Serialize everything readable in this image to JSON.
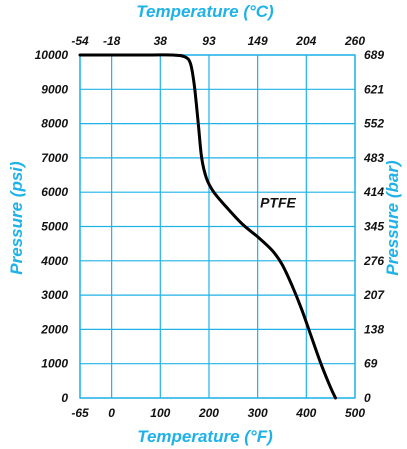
{
  "chart_data": {
    "type": "line",
    "colors": {
      "axis_titles": "#1fb2e8",
      "grid": "#1fb2e8",
      "line": "#000000",
      "text": "#111111"
    },
    "x_bottom": {
      "label": "Temperature (°F)",
      "range": [
        -65,
        500
      ],
      "ticks": [
        {
          "value": -65,
          "label": "-65"
        },
        {
          "value": 0,
          "label": "0"
        },
        {
          "value": 100,
          "label": "100"
        },
        {
          "value": 200,
          "label": "200"
        },
        {
          "value": 300,
          "label": "300"
        },
        {
          "value": 400,
          "label": "400"
        },
        {
          "value": 500,
          "label": "500"
        }
      ]
    },
    "x_top": {
      "label": "Temperature (°C)",
      "ticks": [
        {
          "value_f": -65,
          "label": "-54"
        },
        {
          "value_f": 0,
          "label": "-18"
        },
        {
          "value_f": 100,
          "label": "38"
        },
        {
          "value_f": 200,
          "label": "93"
        },
        {
          "value_f": 300,
          "label": "149"
        },
        {
          "value_f": 400,
          "label": "204"
        },
        {
          "value_f": 500,
          "label": "260"
        }
      ]
    },
    "y_left": {
      "label": "Pressure (psi)",
      "range": [
        0,
        10000
      ],
      "ticks": [
        {
          "value": 0,
          "label": "0"
        },
        {
          "value": 1000,
          "label": "1000"
        },
        {
          "value": 2000,
          "label": "2000"
        },
        {
          "value": 3000,
          "label": "3000"
        },
        {
          "value": 4000,
          "label": "4000"
        },
        {
          "value": 5000,
          "label": "5000"
        },
        {
          "value": 6000,
          "label": "6000"
        },
        {
          "value": 7000,
          "label": "7000"
        },
        {
          "value": 8000,
          "label": "8000"
        },
        {
          "value": 9000,
          "label": "9000"
        },
        {
          "value": 10000,
          "label": "10000"
        }
      ]
    },
    "y_right": {
      "label": "Pressure (bar)",
      "ticks": [
        {
          "value_psi": 0,
          "label": "0"
        },
        {
          "value_psi": 1000,
          "label": "69"
        },
        {
          "value_psi": 2000,
          "label": "138"
        },
        {
          "value_psi": 3000,
          "label": "207"
        },
        {
          "value_psi": 4000,
          "label": "276"
        },
        {
          "value_psi": 5000,
          "label": "345"
        },
        {
          "value_psi": 6000,
          "label": "414"
        },
        {
          "value_psi": 7000,
          "label": "483"
        },
        {
          "value_psi": 8000,
          "label": "552"
        },
        {
          "value_psi": 9000,
          "label": "621"
        },
        {
          "value_psi": 10000,
          "label": "689"
        }
      ]
    },
    "grid": true,
    "series": [
      {
        "name": "PTFE",
        "points": [
          [
            -65,
            10000
          ],
          [
            70,
            10000
          ],
          [
            125,
            10000
          ],
          [
            150,
            9950
          ],
          [
            162,
            9750
          ],
          [
            170,
            9100
          ],
          [
            178,
            8000
          ],
          [
            185,
            7000
          ],
          [
            195,
            6400
          ],
          [
            210,
            6000
          ],
          [
            240,
            5500
          ],
          [
            270,
            5050
          ],
          [
            300,
            4700
          ],
          [
            330,
            4300
          ],
          [
            350,
            3900
          ],
          [
            370,
            3300
          ],
          [
            390,
            2600
          ],
          [
            410,
            1800
          ],
          [
            430,
            1000
          ],
          [
            450,
            300
          ],
          [
            460,
            0
          ]
        ]
      }
    ],
    "annotations": [
      {
        "text": "PTFE",
        "x": 305,
        "y": 5550
      }
    ]
  }
}
